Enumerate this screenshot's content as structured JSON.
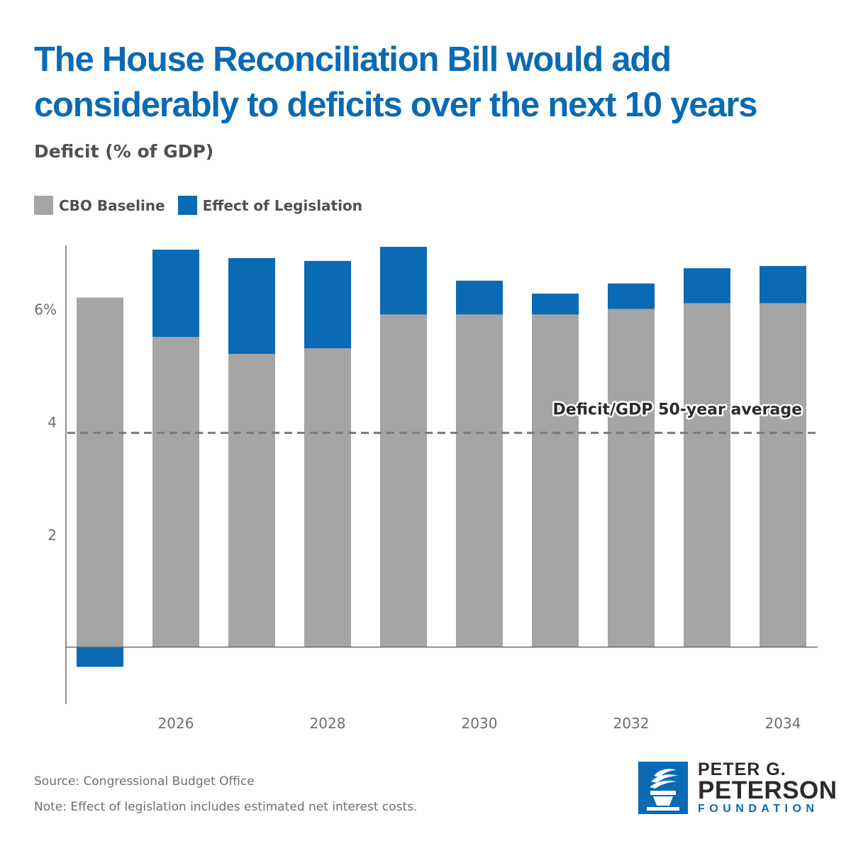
{
  "header": {
    "title": "The House Reconciliation Bill would add considerably to deficits over the next 10 years",
    "subtitle": "Deficit (% of GDP)"
  },
  "legend": {
    "items": [
      {
        "label": "CBO Baseline",
        "color": "#a5a5a5"
      },
      {
        "label": "Effect of Legislation",
        "color": "#0a6ab4"
      }
    ]
  },
  "colors": {
    "title": "#0a6ab4",
    "baseline": "#a5a5a5",
    "legislation": "#0a6ab4",
    "reference_line": "#7a7a7a"
  },
  "chart_data": {
    "type": "bar",
    "stacked": true,
    "categories": [
      2025,
      2026,
      2027,
      2028,
      2029,
      2030,
      2031,
      2032,
      2033,
      2034
    ],
    "series": [
      {
        "name": "CBO Baseline",
        "values": [
          6.2,
          5.5,
          5.2,
          5.3,
          5.9,
          5.9,
          5.9,
          6.0,
          6.1,
          6.1
        ]
      },
      {
        "name": "Effect of Legislation",
        "values": [
          -0.35,
          1.55,
          1.7,
          1.55,
          1.2,
          0.6,
          0.37,
          0.45,
          0.62,
          0.66
        ]
      }
    ],
    "reference_line": {
      "label": "Deficit/GDP 50-year average",
      "value": 3.8
    },
    "y_ticks": [
      {
        "value": 2,
        "label": "2"
      },
      {
        "value": 4,
        "label": "4"
      },
      {
        "value": 6,
        "label": "6%"
      }
    ],
    "x_tick_labels": [
      "2026",
      "2028",
      "2030",
      "2032",
      "2034"
    ],
    "ylim": [
      -1,
      7.2
    ],
    "grid": false,
    "legend_position": "top-left"
  },
  "footer": {
    "source": "Source: Congressional Budget Office",
    "note": "Note: Effect of legislation includes estimated net interest costs."
  },
  "logo": {
    "line1": "PETER G.",
    "line2": "PETERSON",
    "line3": "FOUNDATION"
  }
}
